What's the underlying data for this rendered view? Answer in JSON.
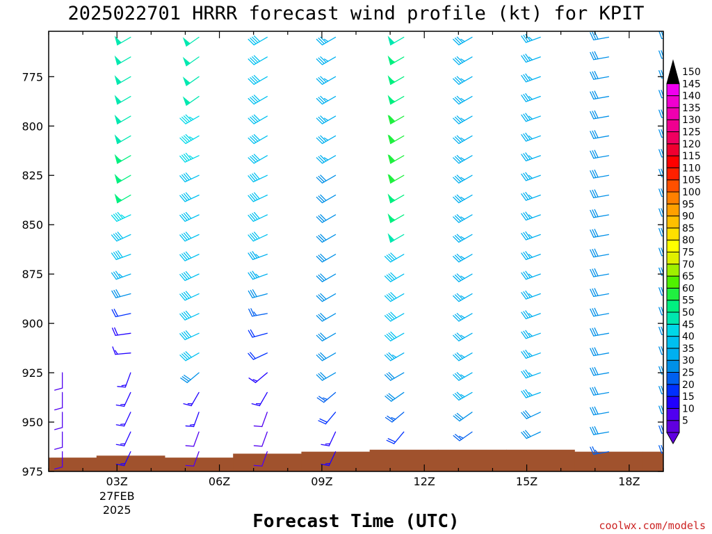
{
  "chart_data": {
    "type": "wind-barb-profile",
    "title": "2025022701 HRRR forecast wind profile (kt) for KPIT",
    "xlabel": "Forecast Time (UTC)",
    "credit": "coolwx.com/models",
    "y_axis": {
      "ticks": [
        "775",
        "800",
        "825",
        "850",
        "875",
        "900",
        "925",
        "950",
        "975"
      ],
      "range_hpa": [
        752,
        975
      ],
      "inverted": true
    },
    "x_axis": {
      "ticks": [
        {
          "label": "03Z",
          "hour": 3,
          "date_line1": "27FEB",
          "date_line2": "2025"
        },
        {
          "label": "06Z",
          "hour": 6
        },
        {
          "label": "09Z",
          "hour": 9
        },
        {
          "label": "12Z",
          "hour": 12
        },
        {
          "label": "15Z",
          "hour": 15
        },
        {
          "label": "18Z",
          "hour": 18
        }
      ],
      "range_hours": [
        1,
        19
      ]
    },
    "levels_hpa": [
      755,
      765,
      775,
      785,
      795,
      805,
      815,
      825,
      835,
      845,
      855,
      865,
      875,
      885,
      895,
      905,
      915,
      925,
      935,
      945,
      955,
      965
    ],
    "columns": [
      {
        "hour": 1.4,
        "sfc": 968,
        "dir": 180,
        "spd": [
          null,
          null,
          null,
          null,
          null,
          null,
          null,
          null,
          null,
          null,
          null,
          null,
          null,
          null,
          null,
          null,
          null,
          12,
          12,
          12,
          12,
          10
        ]
      },
      {
        "hour": 3.4,
        "sfc": 967,
        "dir": [
          240,
          240,
          240,
          240,
          240,
          240,
          240,
          240,
          240,
          245,
          245,
          250,
          250,
          255,
          258,
          262,
          265,
          200,
          205,
          205,
          205,
          205
        ],
        "spd": [
          50,
          50,
          50,
          50,
          50,
          50,
          55,
          55,
          55,
          45,
          40,
          40,
          35,
          30,
          22,
          18,
          15,
          15,
          15,
          15,
          15,
          15
        ]
      },
      {
        "hour": 5.4,
        "sfc": 968,
        "dir": [
          235,
          235,
          235,
          235,
          240,
          240,
          245,
          245,
          245,
          245,
          245,
          245,
          245,
          245,
          245,
          245,
          240,
          230,
          210,
          200,
          200,
          200
        ],
        "spd": [
          50,
          50,
          50,
          50,
          45,
          45,
          45,
          40,
          40,
          40,
          40,
          40,
          40,
          40,
          40,
          40,
          40,
          30,
          15,
          15,
          12,
          12
        ]
      },
      {
        "hour": 7.4,
        "sfc": 966,
        "dir": [
          240,
          240,
          240,
          240,
          240,
          240,
          240,
          245,
          245,
          245,
          245,
          250,
          250,
          255,
          260,
          255,
          245,
          230,
          210,
          200,
          200,
          200
        ],
        "spd": [
          40,
          40,
          40,
          40,
          40,
          40,
          40,
          40,
          40,
          40,
          40,
          35,
          35,
          30,
          25,
          20,
          20,
          15,
          15,
          12,
          12,
          12
        ]
      },
      {
        "hour": 9.4,
        "sfc": 965,
        "dir": [
          240,
          240,
          240,
          240,
          240,
          240,
          240,
          240,
          240,
          240,
          240,
          240,
          240,
          240,
          240,
          240,
          240,
          240,
          230,
          220,
          205,
          205
        ],
        "spd": [
          35,
          35,
          35,
          35,
          35,
          35,
          35,
          30,
          30,
          30,
          30,
          30,
          30,
          30,
          30,
          30,
          30,
          30,
          25,
          20,
          15,
          15
        ]
      },
      {
        "hour": 11.4,
        "sfc": 964,
        "dir": [
          240,
          240,
          240,
          240,
          240,
          240,
          240,
          240,
          240,
          240,
          240,
          240,
          240,
          240,
          240,
          240,
          240,
          240,
          235,
          230,
          220,
          205
        ],
        "spd": [
          50,
          55,
          55,
          55,
          60,
          60,
          60,
          60,
          55,
          55,
          50,
          40,
          40,
          40,
          40,
          40,
          35,
          30,
          30,
          25,
          20,
          15
        ]
      },
      {
        "hour": 13.4,
        "sfc": 964,
        "dir": [
          240,
          240,
          240,
          240,
          240,
          240,
          240,
          240,
          240,
          240,
          240,
          240,
          240,
          240,
          240,
          240,
          240,
          240,
          240,
          235,
          235,
          235
        ],
        "spd": [
          35,
          35,
          35,
          35,
          35,
          35,
          35,
          35,
          35,
          35,
          35,
          35,
          35,
          35,
          35,
          35,
          35,
          35,
          35,
          30,
          25,
          25
        ]
      },
      {
        "hour": 15.4,
        "sfc": 964,
        "dir": [
          250,
          250,
          250,
          250,
          250,
          250,
          250,
          250,
          250,
          250,
          250,
          250,
          250,
          250,
          250,
          250,
          250,
          250,
          250,
          245,
          245,
          245
        ],
        "spd": [
          35,
          35,
          35,
          35,
          35,
          35,
          35,
          35,
          35,
          35,
          35,
          35,
          35,
          35,
          35,
          35,
          35,
          35,
          35,
          30,
          30,
          30
        ]
      },
      {
        "hour": 17.4,
        "sfc": 965,
        "dir": 260,
        "spd": [
          30,
          30,
          30,
          30,
          30,
          30,
          30,
          30,
          30,
          30,
          30,
          30,
          30,
          30,
          30,
          30,
          30,
          30,
          30,
          30,
          30,
          25
        ]
      },
      {
        "hour": 19.4,
        "sfc": 965,
        "dir": 265,
        "spd": [
          30,
          30,
          30,
          30,
          30,
          30,
          30,
          30,
          30,
          30,
          30,
          30,
          30,
          30,
          30,
          30,
          30,
          30,
          30,
          30,
          25,
          25
        ]
      }
    ],
    "colorbar": {
      "values": [
        5,
        10,
        15,
        20,
        25,
        30,
        35,
        40,
        45,
        50,
        55,
        60,
        65,
        70,
        75,
        80,
        85,
        90,
        95,
        100,
        105,
        110,
        115,
        120,
        125,
        130,
        135,
        140,
        145,
        150
      ],
      "colors": [
        "#6000e0",
        "#5000f0",
        "#2000ff",
        "#0030ff",
        "#0060f0",
        "#0090e8",
        "#00b0f0",
        "#00c0f0",
        "#00d8e8",
        "#00e8b0",
        "#00f080",
        "#20f040",
        "#50f000",
        "#a0f000",
        "#e0f000",
        "#ffff00",
        "#ffe000",
        "#ffc000",
        "#ffa000",
        "#ff8000",
        "#ff5000",
        "#ff2000",
        "#ff0000",
        "#f00030",
        "#f00060",
        "#f00090",
        "#f000b0",
        "#f000d0",
        "#f000f0",
        "#000000"
      ]
    },
    "ground_color": "#a0522d"
  }
}
